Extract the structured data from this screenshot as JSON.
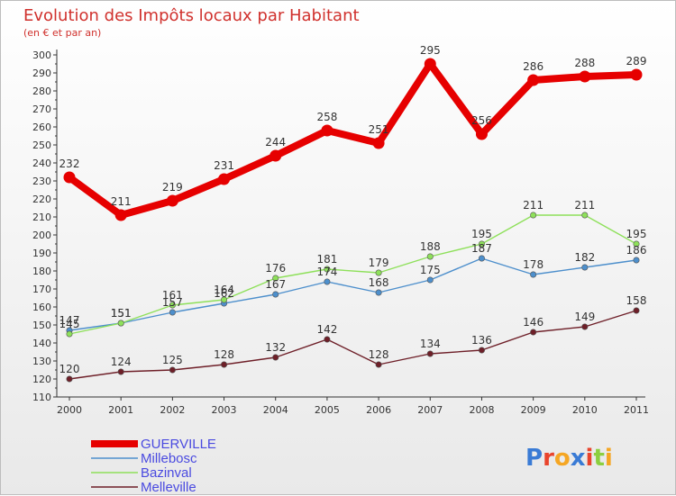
{
  "chart_data": {
    "type": "line",
    "title": "Evolution des Impôts locaux par Habitant",
    "subtitle": "(en € et par an)",
    "x": [
      "2000",
      "2001",
      "2002",
      "2003",
      "2004",
      "2005",
      "2006",
      "2007",
      "2008",
      "2009",
      "2010",
      "2011"
    ],
    "ylim": [
      110,
      300
    ],
    "yticks": [
      110,
      120,
      130,
      140,
      150,
      160,
      170,
      180,
      190,
      200,
      210,
      220,
      230,
      240,
      250,
      260,
      270,
      280,
      290,
      300
    ],
    "grid": false,
    "legend_position": "bottom-left",
    "series": [
      {
        "name": "GUERVILLE",
        "color": "#e60000",
        "values": [
          232,
          211,
          219,
          231,
          244,
          258,
          251,
          295,
          256,
          286,
          288,
          289
        ]
      },
      {
        "name": "Millebosc",
        "color": "#4d8fcc",
        "values": [
          147,
          151,
          157,
          162,
          167,
          174,
          168,
          175,
          187,
          178,
          182,
          186
        ]
      },
      {
        "name": "Bazinval",
        "color": "#8ee05a",
        "values": [
          145,
          151,
          161,
          164,
          176,
          181,
          179,
          188,
          195,
          211,
          211,
          195
        ]
      },
      {
        "name": "Melleville",
        "color": "#6e1f28",
        "values": [
          120,
          124,
          125,
          128,
          132,
          142,
          128,
          134,
          136,
          146,
          149,
          158
        ]
      }
    ]
  },
  "logo": {
    "letters": [
      "P",
      "r",
      "o",
      "x",
      "i",
      "t",
      "i"
    ],
    "colors": [
      "#3a7bd5",
      "#e9442c",
      "#f5a623",
      "#3a7bd5",
      "#e9442c",
      "#8ccf3f",
      "#f5a623"
    ]
  }
}
